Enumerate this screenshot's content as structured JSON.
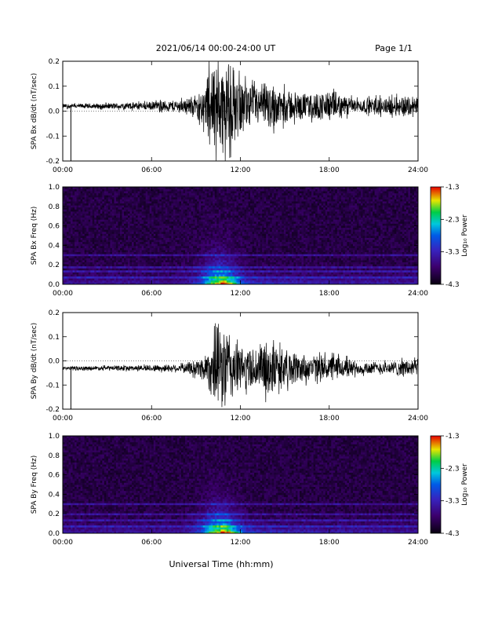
{
  "header": {
    "title": "2021/06/14  00:00-24:00 UT",
    "page": "Page 1/1"
  },
  "footer": {
    "xlabel": "Universal Time (hh:mm)"
  },
  "colorbar": {
    "label": "Log₁₀ Power",
    "ticks": [
      "-1.3",
      "-2.3",
      "-3.3",
      "-4.3"
    ],
    "range": [
      -4.3,
      -1.3
    ]
  },
  "chart_data": [
    {
      "type": "line",
      "ylabel": "SPA Bx dB/dt (nT/sec)",
      "xlim": [
        0,
        24
      ],
      "ylim": [
        -0.2,
        0.2
      ],
      "xticks": [
        "00:00",
        "06:00",
        "12:00",
        "18:00",
        "24:00"
      ],
      "yticks": [
        "0.2",
        "0.1",
        "0.0",
        "-0.1",
        "-0.2"
      ],
      "x_hours": [
        0,
        2,
        4,
        6,
        8,
        9,
        9.5,
        10,
        10.5,
        11,
        11.5,
        12,
        13,
        14,
        14.5,
        15,
        16,
        17,
        18,
        19,
        20,
        21,
        22,
        23,
        24
      ],
      "envelope": [
        0.01,
        0.012,
        0.015,
        0.02,
        0.03,
        0.05,
        0.09,
        0.2,
        0.2,
        0.2,
        0.18,
        0.12,
        0.09,
        0.11,
        0.09,
        0.08,
        0.06,
        0.06,
        0.07,
        0.05,
        0.03,
        0.04,
        0.04,
        0.05,
        0.05
      ],
      "baseline": 0.02
    },
    {
      "type": "heatmap",
      "ylabel": "SPA Bx Freq (Hz)",
      "xlim": [
        0,
        24
      ],
      "ylim": [
        0,
        1
      ],
      "xticks": [
        "00:00",
        "06:00",
        "12:00",
        "18:00",
        "24:00"
      ],
      "yticks": [
        "1.0",
        "0.8",
        "0.6",
        "0.4",
        "0.2",
        "0.0"
      ],
      "zlim": [
        -4.3,
        -1.3
      ],
      "peak_hour": 10.6,
      "line_freqs_hz": [
        0.08,
        0.13,
        0.18,
        0.3
      ]
    },
    {
      "type": "line",
      "ylabel": "SPA By dB/dt (nT/sec)",
      "xlim": [
        0,
        24
      ],
      "ylim": [
        -0.2,
        0.2
      ],
      "xticks": [
        "00:00",
        "06:00",
        "12:00",
        "18:00",
        "24:00"
      ],
      "yticks": [
        "0.2",
        "0.1",
        "0.0",
        "-0.1",
        "-0.2"
      ],
      "x_hours": [
        0,
        2,
        4,
        6,
        8,
        9,
        9.5,
        10,
        10.5,
        11,
        11.5,
        12,
        13,
        14,
        14.5,
        15,
        16,
        17,
        18,
        19,
        20,
        21,
        22,
        23,
        24
      ],
      "envelope": [
        0.008,
        0.01,
        0.012,
        0.015,
        0.02,
        0.04,
        0.06,
        0.12,
        0.2,
        0.2,
        0.16,
        0.1,
        0.1,
        0.14,
        0.1,
        0.09,
        0.07,
        0.06,
        0.06,
        0.05,
        0.03,
        0.03,
        0.03,
        0.04,
        0.04
      ],
      "baseline": -0.03
    },
    {
      "type": "heatmap",
      "ylabel": "SPA By Freq (Hz)",
      "xlim": [
        0,
        24
      ],
      "ylim": [
        0,
        1
      ],
      "xticks": [
        "00:00",
        "06:00",
        "12:00",
        "18:00",
        "24:00"
      ],
      "yticks": [
        "1.0",
        "0.8",
        "0.6",
        "0.4",
        "0.2",
        "0.0"
      ],
      "zlim": [
        -4.3,
        -1.3
      ],
      "peak_hour": 10.6,
      "line_freqs_hz": [
        0.08,
        0.13,
        0.2,
        0.3
      ]
    }
  ]
}
